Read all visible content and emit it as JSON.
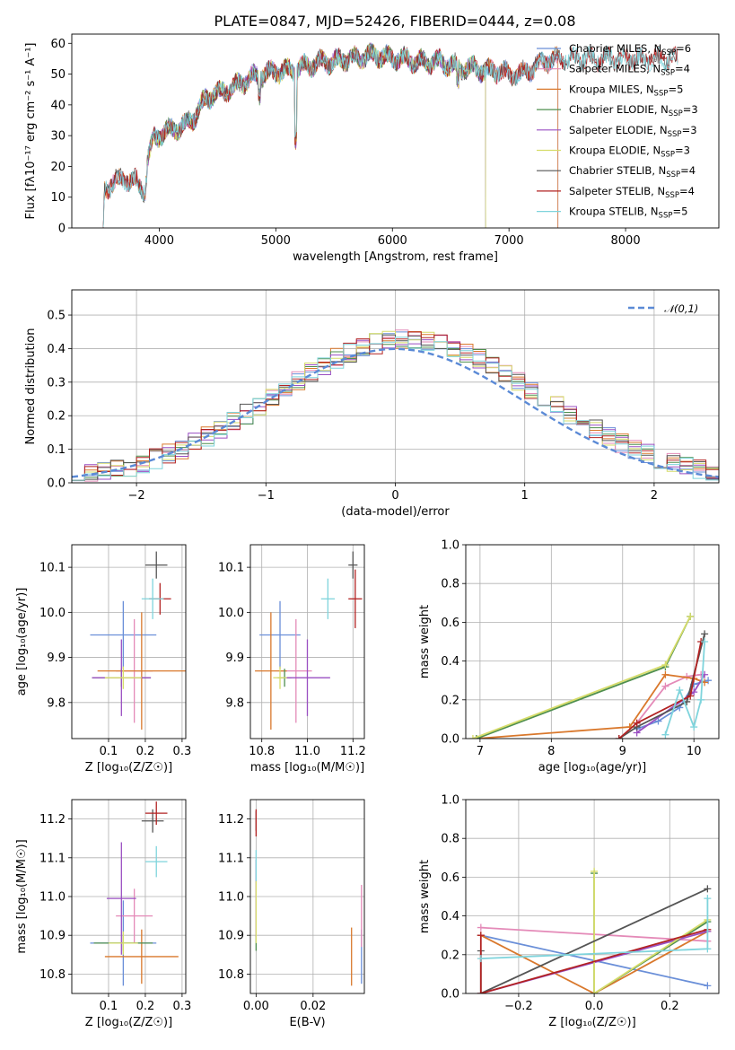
{
  "title": "PLATE=0847, MJD=52426, FIBERID=0444, z=0.08",
  "series_colors": [
    "#6a8fd8",
    "#e48ab8",
    "#d9782c",
    "#4f8f4f",
    "#9a4fc2",
    "#d6dc6a",
    "#555555",
    "#b22222",
    "#7fd4dc"
  ],
  "chart_data": [
    {
      "id": "spectrum",
      "type": "line",
      "xlabel": "wavelength [Angstrom, rest frame]",
      "ylabel": "Flux [fλ10⁻¹⁷ erg cm⁻² s⁻¹ A⁻¹]",
      "xlim": [
        3250,
        8800
      ],
      "ylim": [
        0,
        63
      ],
      "xticks": [
        4000,
        5000,
        6000,
        7000,
        8000
      ],
      "yticks": [
        0,
        10,
        20,
        30,
        40,
        50,
        60
      ],
      "grid": false,
      "legend_position": "top-right",
      "legend": [
        "Chabrier MILES, N_SSP=6",
        "Salpeter MILES, N_SSP=4",
        "Kroupa MILES, N_SSP=5",
        "Chabrier ELODIE, N_SSP=3",
        "Salpeter ELODIE, N_SSP=3",
        "Kroupa ELODIE, N_SSP=3",
        "Chabrier STELIB, N_SSP=4",
        "Salpeter STELIB, N_SSP=4",
        "Kroupa STELIB, N_SSP=5"
      ],
      "continuum": [
        [
          3520,
          0
        ],
        [
          3530,
          12
        ],
        [
          3600,
          15
        ],
        [
          3700,
          16
        ],
        [
          3800,
          15
        ],
        [
          3880,
          12
        ],
        [
          3900,
          22
        ],
        [
          3950,
          29
        ],
        [
          4000,
          30
        ],
        [
          4100,
          32
        ],
        [
          4200,
          33
        ],
        [
          4300,
          36
        ],
        [
          4400,
          42
        ],
        [
          4500,
          44
        ],
        [
          4600,
          45
        ],
        [
          4700,
          47
        ],
        [
          4800,
          49
        ],
        [
          4900,
          50
        ],
        [
          5000,
          51
        ],
        [
          5100,
          51
        ],
        [
          5200,
          52
        ],
        [
          5300,
          53
        ],
        [
          5400,
          54
        ],
        [
          5500,
          54
        ],
        [
          5600,
          55
        ],
        [
          5700,
          55
        ],
        [
          5800,
          56
        ],
        [
          5900,
          56
        ],
        [
          6000,
          55
        ],
        [
          6100,
          55
        ],
        [
          6200,
          54
        ],
        [
          6300,
          54
        ],
        [
          6400,
          54
        ],
        [
          6500,
          53
        ],
        [
          6600,
          52
        ],
        [
          6700,
          52
        ],
        [
          6800,
          51
        ],
        [
          6900,
          51
        ],
        [
          7000,
          50
        ],
        [
          7100,
          50
        ],
        [
          7200,
          52
        ],
        [
          7300,
          54
        ],
        [
          7400,
          55
        ]
      ],
      "model_ranges": [
        [
          3520,
          7420
        ],
        [
          3520,
          7420
        ],
        [
          3520,
          7420
        ],
        [
          3900,
          6800
        ],
        [
          3900,
          6800
        ],
        [
          3900,
          6800
        ],
        [
          3520,
          8450
        ],
        [
          3520,
          8450
        ],
        [
          3520,
          8450
        ]
      ],
      "dropouts": [
        {
          "wavelength": 6795,
          "series": [
            3,
            4,
            5
          ]
        },
        {
          "wavelength": 7420,
          "series": [
            0,
            1,
            2
          ]
        },
        {
          "wavelength": 3900,
          "series": [
            3,
            4,
            5
          ]
        }
      ]
    },
    {
      "id": "residual_histogram",
      "type": "histogram",
      "xlabel": "(data-model)/error",
      "ylabel": "Normed distribution",
      "xlim": [
        -2.5,
        2.5
      ],
      "ylim": [
        0,
        0.575
      ],
      "xticks": [
        -2,
        -1,
        0,
        1,
        2
      ],
      "yticks": [
        0.0,
        0.1,
        0.2,
        0.3,
        0.4,
        0.5
      ],
      "grid": true,
      "legend_position": "top-right",
      "legend": [
        "𝒩(0,1)"
      ],
      "bin_width": 0.1,
      "bin_start": -2.5,
      "overlay": {
        "type": "gaussian",
        "mean": 0,
        "sigma": 1,
        "style": "dashed"
      }
    },
    {
      "id": "age_vs_Z",
      "type": "errorbar",
      "xlabel": "Z [log₁₀(Z/Z☉)]",
      "ylabel": "age  [log₁₀(age/yr)]",
      "xlim": [
        0.0,
        0.31
      ],
      "ylim": [
        9.72,
        10.15
      ],
      "xticks": [
        0.1,
        0.2,
        0.3
      ],
      "yticks": [
        9.8,
        9.9,
        10.0,
        10.1
      ],
      "grid": true,
      "points": [
        {
          "series": 0,
          "x": 0.14,
          "y": 9.95,
          "xerr": 0.09,
          "yerr": 0.075
        },
        {
          "series": 1,
          "x": 0.17,
          "y": 9.87,
          "xerr": 0.05,
          "yerr": 0.115
        },
        {
          "series": 2,
          "x": 0.19,
          "y": 9.87,
          "xerr": 0.12,
          "yerr": 0.13
        },
        {
          "series": 3,
          "x": 0.135,
          "y": 9.855,
          "xerr": 0.08,
          "yerr": 0.02
        },
        {
          "series": 4,
          "x": 0.135,
          "y": 9.855,
          "xerr": 0.08,
          "yerr": 0.085
        },
        {
          "series": 5,
          "x": 0.14,
          "y": 9.855,
          "xerr": 0.05,
          "yerr": 0.025
        },
        {
          "series": 6,
          "x": 0.23,
          "y": 10.105,
          "xerr": 0.03,
          "yerr": 0.03
        },
        {
          "series": 7,
          "x": 0.24,
          "y": 10.03,
          "xerr": 0.03,
          "yerr": 0.035
        },
        {
          "series": 8,
          "x": 0.22,
          "y": 10.03,
          "xerr": 0.03,
          "yerr": 0.045
        }
      ]
    },
    {
      "id": "age_vs_mass",
      "type": "errorbar",
      "xlabel": "mass [log₁₀(M/M☉)]",
      "ylabel": "",
      "xlim": [
        10.75,
        11.25
      ],
      "ylim": [
        9.72,
        10.15
      ],
      "xticks": [
        10.8,
        11.0,
        11.2
      ],
      "yticks": [
        9.8,
        9.9,
        10.0,
        10.1
      ],
      "grid": true,
      "points": [
        {
          "series": 0,
          "x": 10.88,
          "y": 9.95,
          "xerr": 0.09,
          "yerr": 0.075
        },
        {
          "series": 1,
          "x": 10.95,
          "y": 9.87,
          "xerr": 0.07,
          "yerr": 0.115
        },
        {
          "series": 2,
          "x": 10.84,
          "y": 9.87,
          "xerr": 0.07,
          "yerr": 0.13
        },
        {
          "series": 3,
          "x": 10.9,
          "y": 9.855,
          "xerr": 0.03,
          "yerr": 0.02
        },
        {
          "series": 4,
          "x": 11.0,
          "y": 9.855,
          "xerr": 0.1,
          "yerr": 0.085
        },
        {
          "series": 5,
          "x": 10.88,
          "y": 9.855,
          "xerr": 0.03,
          "yerr": 0.025
        },
        {
          "series": 6,
          "x": 11.2,
          "y": 10.105,
          "xerr": 0.02,
          "yerr": 0.03
        },
        {
          "series": 7,
          "x": 11.21,
          "y": 10.03,
          "xerr": 0.03,
          "yerr": 0.065
        },
        {
          "series": 8,
          "x": 11.09,
          "y": 10.03,
          "xerr": 0.03,
          "yerr": 0.045
        }
      ]
    },
    {
      "id": "mass_weight_vs_age",
      "type": "line",
      "xlabel": "age  [log₁₀(age/yr)]",
      "ylabel": "mass weight",
      "xlim": [
        6.8,
        10.35
      ],
      "ylim": [
        0.0,
        1.0
      ],
      "xticks": [
        7,
        8,
        9,
        10
      ],
      "yticks": [
        0.0,
        0.2,
        0.4,
        0.6,
        0.8,
        1.0
      ],
      "grid": true,
      "series": [
        {
          "series": 0,
          "x": [
            9.2,
            9.5,
            9.8,
            10.0,
            10.2
          ],
          "y": [
            0.05,
            0.09,
            0.16,
            0.28,
            0.3
          ]
        },
        {
          "series": 1,
          "x": [
            9.2,
            9.6,
            9.9,
            10.1
          ],
          "y": [
            0.08,
            0.27,
            0.32,
            0.33
          ]
        },
        {
          "series": 2,
          "x": [
            6.95,
            9.1,
            9.6,
            10.0,
            10.15
          ],
          "y": [
            0.0,
            0.06,
            0.33,
            0.31,
            0.29
          ]
        },
        {
          "series": 3,
          "x": [
            6.95,
            9.6,
            9.95
          ],
          "y": [
            0.0,
            0.37,
            0.63
          ]
        },
        {
          "series": 4,
          "x": [
            9.2,
            10.0,
            10.15
          ],
          "y": [
            0.03,
            0.24,
            0.33
          ]
        },
        {
          "series": 5,
          "x": [
            6.9,
            9.6,
            9.95
          ],
          "y": [
            0.0,
            0.38,
            0.63
          ]
        },
        {
          "series": 6,
          "x": [
            8.95,
            9.2,
            9.9,
            10.15
          ],
          "y": [
            0.0,
            0.06,
            0.19,
            0.54
          ]
        },
        {
          "series": 7,
          "x": [
            8.95,
            9.2,
            9.95,
            10.1
          ],
          "y": [
            0.0,
            0.08,
            0.22,
            0.5
          ]
        },
        {
          "series": 8,
          "x": [
            9.6,
            9.8,
            10.0,
            10.1,
            10.15
          ],
          "y": [
            0.02,
            0.25,
            0.06,
            0.2,
            0.5
          ]
        }
      ]
    },
    {
      "id": "mass_vs_Z",
      "type": "errorbar",
      "xlabel": "Z [log₁₀(Z/Z☉)]",
      "ylabel": "mass [log₁₀(M/M☉)]",
      "xlim": [
        0.0,
        0.31
      ],
      "ylim": [
        10.75,
        11.25
      ],
      "xticks": [
        0.1,
        0.2,
        0.3
      ],
      "yticks": [
        10.8,
        10.9,
        11.0,
        11.1,
        11.2
      ],
      "grid": true,
      "points": [
        {
          "series": 0,
          "x": 0.14,
          "y": 10.88,
          "xerr": 0.09,
          "yerr": 0.11
        },
        {
          "series": 1,
          "x": 0.17,
          "y": 10.95,
          "xerr": 0.05,
          "yerr": 0.07
        },
        {
          "series": 2,
          "x": 0.19,
          "y": 10.845,
          "xerr": 0.1,
          "yerr": 0.07
        },
        {
          "series": 3,
          "x": 0.14,
          "y": 10.88,
          "xerr": 0.08,
          "yerr": 0.02
        },
        {
          "series": 4,
          "x": 0.135,
          "y": 10.995,
          "xerr": 0.04,
          "yerr": 0.145
        },
        {
          "series": 5,
          "x": 0.14,
          "y": 10.88,
          "xerr": 0.04,
          "yerr": 0.03
        },
        {
          "series": 6,
          "x": 0.22,
          "y": 11.195,
          "xerr": 0.03,
          "yerr": 0.03
        },
        {
          "series": 7,
          "x": 0.23,
          "y": 11.215,
          "xerr": 0.03,
          "yerr": 0.03
        },
        {
          "series": 8,
          "x": 0.23,
          "y": 11.09,
          "xerr": 0.03,
          "yerr": 0.04
        }
      ]
    },
    {
      "id": "mass_vs_ebv",
      "type": "errorbar",
      "xlabel": "E(B-V)",
      "ylabel": "",
      "xlim": [
        -0.002,
        0.038
      ],
      "ylim": [
        10.75,
        11.25
      ],
      "xticks": [
        0.0,
        0.02
      ],
      "yticks": [
        10.8,
        10.9,
        11.0,
        11.1,
        11.2
      ],
      "grid": true,
      "points": [
        {
          "series": 0,
          "x": 0.037,
          "y": 10.845,
          "xerr": 0.0,
          "yerr": 0.07
        },
        {
          "series": 1,
          "x": 0.037,
          "y": 10.95,
          "xerr": 0.0,
          "yerr": 0.08
        },
        {
          "series": 2,
          "x": 0.0335,
          "y": 10.845,
          "xerr": 0.0,
          "yerr": 0.075
        },
        {
          "series": 3,
          "x": 0.0,
          "y": 10.88,
          "xerr": 0.0,
          "yerr": 0.02
        },
        {
          "series": 4,
          "x": 0.0,
          "y": 10.995,
          "xerr": 0.0,
          "yerr": 0.1
        },
        {
          "series": 5,
          "x": 0.0,
          "y": 10.96,
          "xerr": 0.0,
          "yerr": 0.08
        },
        {
          "series": 6,
          "x": 0.0,
          "y": 11.195,
          "xerr": 0.0,
          "yerr": 0.025
        },
        {
          "series": 7,
          "x": 0.0,
          "y": 11.19,
          "xerr": 0.0,
          "yerr": 0.035
        },
        {
          "series": 8,
          "x": 0.0,
          "y": 11.08,
          "xerr": 0.0,
          "yerr": 0.04
        }
      ]
    },
    {
      "id": "mass_weight_vs_Z",
      "type": "line",
      "xlabel": "Z [log₁₀(Z/Z☉)]",
      "ylabel": "mass weight",
      "xlim": [
        -0.34,
        0.33
      ],
      "ylim": [
        0.0,
        1.0
      ],
      "xticks": [
        -0.2,
        0.0,
        0.2
      ],
      "yticks": [
        0.0,
        0.2,
        0.4,
        0.6,
        0.8,
        1.0
      ],
      "grid": true,
      "series": [
        {
          "series": 0,
          "x": [
            -0.3,
            0.3
          ],
          "y": [
            0.3,
            0.04
          ]
        },
        {
          "series": 1,
          "x": [
            -0.3,
            0.3
          ],
          "y": [
            0.34,
            0.27
          ]
        },
        {
          "series": 2,
          "x": [
            -0.3,
            0.0,
            0.3
          ],
          "y": [
            0.3,
            0.0,
            0.32
          ]
        },
        {
          "series": 3,
          "x": [
            0.0,
            0.0,
            0.3
          ],
          "y": [
            0.62,
            0.0,
            0.37
          ]
        },
        {
          "series": 4,
          "x": [
            -0.3,
            0.3
          ],
          "y": [
            0.0,
            0.32
          ]
        },
        {
          "series": 5,
          "x": [
            0.0,
            0.0,
            0.3
          ],
          "y": [
            0.63,
            0.0,
            0.38
          ]
        },
        {
          "series": 6,
          "x": [
            -0.3,
            -0.3,
            0.3
          ],
          "y": [
            0.22,
            0.0,
            0.54
          ]
        },
        {
          "series": 7,
          "x": [
            -0.3,
            -0.3,
            0.3
          ],
          "y": [
            0.3,
            0.0,
            0.33
          ]
        },
        {
          "series": 8,
          "x": [
            -0.3,
            0.3,
            0.3
          ],
          "y": [
            0.18,
            0.23,
            0.49
          ]
        }
      ]
    }
  ]
}
